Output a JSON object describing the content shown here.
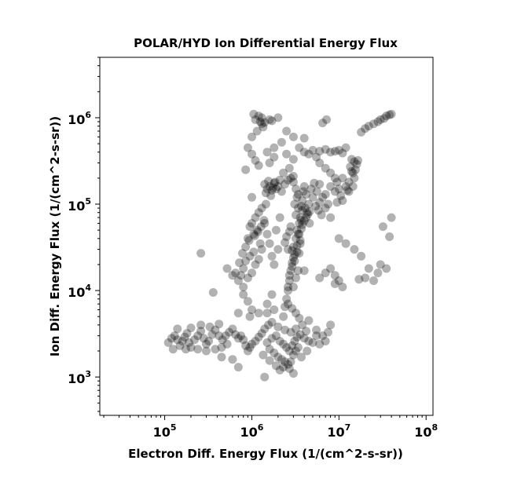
{
  "chart_data": {
    "type": "scatter",
    "title": "POLAR/HYD  Ion Differential Energy Flux",
    "xlabel": "Electron Diff. Energy Flux (1/(cm^2-s-sr))",
    "ylabel": "Ion Diff. Energy Flux (1/(cm^2-s-sr))",
    "x_scale": "log",
    "y_scale": "log",
    "xlim": [
      18000,
      120000000
    ],
    "ylim": [
      360,
      5000000
    ],
    "x_ticks": [
      {
        "base": "10",
        "exp": "5"
      },
      {
        "base": "10",
        "exp": "6"
      },
      {
        "base": "10",
        "exp": "7"
      },
      {
        "base": "10",
        "exp": "8"
      }
    ],
    "y_ticks": [
      {
        "base": "10",
        "exp": "3"
      },
      {
        "base": "10",
        "exp": "4"
      },
      {
        "base": "10",
        "exp": "5"
      },
      {
        "base": "10",
        "exp": "6"
      }
    ],
    "marker_color": "#000000",
    "marker_opacity": 0.3,
    "grid": false,
    "legend": "none",
    "points": [
      [
        1200000,
        1050000
      ],
      [
        1300000,
        1000000
      ],
      [
        1100000,
        950000
      ],
      [
        1250000,
        900000
      ],
      [
        1400000,
        880000
      ],
      [
        1350000,
        780000
      ],
      [
        1700000,
        920000
      ],
      [
        1000000,
        600000
      ],
      [
        1150000,
        700000
      ],
      [
        6500000,
        870000
      ],
      [
        7200000,
        950000
      ],
      [
        1050000,
        1100000
      ],
      [
        1600000,
        300000
      ],
      [
        2200000,
        520000
      ],
      [
        1800000,
        450000
      ],
      [
        1500000,
        400000
      ],
      [
        2500000,
        380000
      ],
      [
        4000000,
        400000
      ],
      [
        5000000,
        420000
      ],
      [
        6000000,
        410000
      ],
      [
        7000000,
        430000
      ],
      [
        8000000,
        400000
      ],
      [
        9000000,
        410000
      ],
      [
        10000000,
        420000
      ],
      [
        12000000,
        450000
      ],
      [
        11000000,
        390000
      ],
      [
        5500000,
        350000
      ],
      [
        3000000,
        330000
      ],
      [
        14000000,
        330000
      ],
      [
        15000000,
        310000
      ],
      [
        16000000,
        290000
      ],
      [
        15500000,
        250000
      ],
      [
        14500000,
        230000
      ],
      [
        15000000,
        200000
      ],
      [
        13000000,
        180000
      ],
      [
        12000000,
        160000
      ],
      [
        10000000,
        150000
      ],
      [
        9000000,
        140000
      ],
      [
        8000000,
        160000
      ],
      [
        7000000,
        130000
      ],
      [
        6000000,
        170000
      ],
      [
        13500000,
        270000
      ],
      [
        16500000,
        320000
      ],
      [
        14000000,
        240000
      ],
      [
        14500000,
        160000
      ],
      [
        13000000,
        140000
      ],
      [
        11000000,
        110000
      ],
      [
        9500000,
        105000
      ],
      [
        10500000,
        125000
      ],
      [
        12500000,
        145000
      ],
      [
        20000000,
        750000
      ],
      [
        25000000,
        850000
      ],
      [
        30000000,
        950000
      ],
      [
        35000000,
        1050000
      ],
      [
        40000000,
        1100000
      ],
      [
        18000000,
        680000
      ],
      [
        22000000,
        800000
      ],
      [
        28000000,
        900000
      ],
      [
        33000000,
        980000
      ],
      [
        38000000,
        1080000
      ],
      [
        1400000,
        170000
      ],
      [
        1500000,
        150000
      ],
      [
        1600000,
        160000
      ],
      [
        1700000,
        145000
      ],
      [
        1800000,
        175000
      ],
      [
        1900000,
        150000
      ],
      [
        2000000,
        160000
      ],
      [
        2200000,
        140000
      ],
      [
        1450000,
        135000
      ],
      [
        1650000,
        125000
      ],
      [
        1850000,
        180000
      ],
      [
        2100000,
        190000
      ],
      [
        2400000,
        170000
      ],
      [
        2600000,
        190000
      ],
      [
        2800000,
        200000
      ],
      [
        2300000,
        230000
      ],
      [
        2700000,
        260000
      ],
      [
        3000000,
        210000
      ],
      [
        1550000,
        185000
      ],
      [
        1750000,
        155000
      ],
      [
        3000000,
        180000
      ],
      [
        3200000,
        150000
      ],
      [
        3300000,
        120000
      ],
      [
        3100000,
        100000
      ],
      [
        3400000,
        90000
      ],
      [
        3200000,
        75000
      ],
      [
        3500000,
        60000
      ],
      [
        3300000,
        50000
      ],
      [
        3200000,
        40000
      ],
      [
        3000000,
        32000
      ],
      [
        3100000,
        26000
      ],
      [
        2900000,
        21000
      ],
      [
        2800000,
        17000
      ],
      [
        2700000,
        13000
      ],
      [
        2600000,
        10000
      ],
      [
        2500000,
        8000
      ],
      [
        2400000,
        6500
      ],
      [
        2300000,
        5000
      ],
      [
        3600000,
        70000
      ],
      [
        3800000,
        110000
      ],
      [
        3400000,
        130000
      ],
      [
        3700000,
        95000
      ],
      [
        3900000,
        140000
      ],
      [
        3500000,
        45000
      ],
      [
        3600000,
        35000
      ],
      [
        3300000,
        28000
      ],
      [
        3000000,
        24000
      ],
      [
        2900000,
        19000
      ],
      [
        2700000,
        15000
      ],
      [
        2600000,
        11000
      ],
      [
        4000000,
        160000
      ],
      [
        4200000,
        130000
      ],
      [
        4500000,
        100000
      ],
      [
        4800000,
        150000
      ],
      [
        5000000,
        120000
      ],
      [
        4300000,
        80000
      ],
      [
        4600000,
        60000
      ],
      [
        4100000,
        90000
      ],
      [
        3800000,
        85000
      ],
      [
        3700000,
        65000
      ],
      [
        5200000,
        175000
      ],
      [
        5600000,
        140000
      ],
      [
        6000000,
        105000
      ],
      [
        6500000,
        120000
      ],
      [
        7000000,
        90000
      ],
      [
        7500000,
        100000
      ],
      [
        8000000,
        70000
      ],
      [
        6300000,
        75000
      ],
      [
        5800000,
        85000
      ],
      [
        5400000,
        95000
      ],
      [
        1200000,
        80000
      ],
      [
        1100000,
        70000
      ],
      [
        1000000,
        60000
      ],
      [
        1150000,
        50000
      ],
      [
        1050000,
        45000
      ],
      [
        950000,
        55000
      ],
      [
        1250000,
        35000
      ],
      [
        1300000,
        30000
      ],
      [
        900000,
        40000
      ],
      [
        1400000,
        60000
      ],
      [
        1500000,
        45000
      ],
      [
        1600000,
        35000
      ],
      [
        1700000,
        25000
      ],
      [
        1800000,
        20000
      ],
      [
        2000000,
        30000
      ],
      [
        1900000,
        50000
      ],
      [
        2100000,
        70000
      ],
      [
        1300000,
        90000
      ],
      [
        1450000,
        100000
      ],
      [
        1000000,
        120000
      ],
      [
        950000,
        25000
      ],
      [
        850000,
        22000
      ],
      [
        800000,
        18000
      ],
      [
        750000,
        15000
      ],
      [
        700000,
        13000
      ],
      [
        800000,
        11000
      ],
      [
        900000,
        14000
      ],
      [
        1000000,
        16000
      ],
      [
        1100000,
        20000
      ],
      [
        1200000,
        23000
      ],
      [
        1050000,
        28000
      ],
      [
        650000,
        16000
      ],
      [
        720000,
        21000
      ],
      [
        780000,
        27000
      ],
      [
        850000,
        32000
      ],
      [
        930000,
        38000
      ],
      [
        1080000,
        43000
      ],
      [
        1180000,
        48000
      ],
      [
        1280000,
        55000
      ],
      [
        1380000,
        65000
      ],
      [
        10000000,
        40000
      ],
      [
        12000000,
        35000
      ],
      [
        15000000,
        30000
      ],
      [
        18000000,
        25000
      ],
      [
        22000000,
        18000
      ],
      [
        30000000,
        20000
      ],
      [
        35000000,
        18000
      ],
      [
        38000000,
        42000
      ],
      [
        40000000,
        70000
      ],
      [
        32000000,
        55000
      ],
      [
        25000000,
        13000
      ],
      [
        20000000,
        14000
      ],
      [
        28000000,
        16000
      ],
      [
        17000000,
        13500
      ],
      [
        8000000,
        18000
      ],
      [
        9000000,
        15000
      ],
      [
        10000000,
        13000
      ],
      [
        11000000,
        11000
      ],
      [
        7000000,
        16000
      ],
      [
        6000000,
        14000
      ],
      [
        1500000,
        2500
      ],
      [
        1700000,
        2800
      ],
      [
        1900000,
        3000
      ],
      [
        2100000,
        2600
      ],
      [
        2300000,
        2400
      ],
      [
        2500000,
        2200
      ],
      [
        2700000,
        2000
      ],
      [
        2900000,
        2300
      ],
      [
        3100000,
        2600
      ],
      [
        3300000,
        2900
      ],
      [
        1600000,
        2100
      ],
      [
        1800000,
        1900
      ],
      [
        2000000,
        1700
      ],
      [
        2200000,
        1600
      ],
      [
        2400000,
        1500
      ],
      [
        2600000,
        1400
      ],
      [
        2800000,
        1500
      ],
      [
        3000000,
        1800
      ],
      [
        3200000,
        2000
      ],
      [
        3400000,
        2200
      ],
      [
        1300000,
        3200
      ],
      [
        1200000,
        2900
      ],
      [
        1100000,
        2600
      ],
      [
        1000000,
        2400
      ],
      [
        950000,
        2200
      ],
      [
        900000,
        2000
      ],
      [
        850000,
        2300
      ],
      [
        800000,
        2700
      ],
      [
        750000,
        3000
      ],
      [
        700000,
        2800
      ],
      [
        1400000,
        3600
      ],
      [
        1550000,
        4000
      ],
      [
        1700000,
        4300
      ],
      [
        2000000,
        3800
      ],
      [
        2400000,
        3500
      ],
      [
        2800000,
        3300
      ],
      [
        3200000,
        3600
      ],
      [
        3600000,
        3100
      ],
      [
        4000000,
        2800
      ],
      [
        4500000,
        2600
      ],
      [
        5000000,
        2500
      ],
      [
        6000000,
        2400
      ],
      [
        7000000,
        2600
      ],
      [
        5500000,
        3000
      ],
      [
        4200000,
        3400
      ],
      [
        3800000,
        4000
      ],
      [
        3500000,
        4800
      ],
      [
        3200000,
        5500
      ],
      [
        2900000,
        6200
      ],
      [
        2600000,
        7000
      ],
      [
        3000000,
        1100
      ],
      [
        1400000,
        1000
      ],
      [
        2300000,
        1300
      ],
      [
        2100000,
        1200
      ],
      [
        1900000,
        1350
      ],
      [
        1600000,
        1550
      ],
      [
        1350000,
        1800
      ],
      [
        2700000,
        1250
      ],
      [
        3700000,
        1700
      ],
      [
        4300000,
        2000
      ],
      [
        110000,
        2500
      ],
      [
        120000,
        2800
      ],
      [
        130000,
        3000
      ],
      [
        140000,
        2700
      ],
      [
        150000,
        2300
      ],
      [
        160000,
        2600
      ],
      [
        170000,
        2900
      ],
      [
        180000,
        3200
      ],
      [
        190000,
        2500
      ],
      [
        200000,
        2200
      ],
      [
        220000,
        2700
      ],
      [
        240000,
        3000
      ],
      [
        260000,
        3400
      ],
      [
        280000,
        2800
      ],
      [
        300000,
        2400
      ],
      [
        320000,
        2600
      ],
      [
        350000,
        3100
      ],
      [
        380000,
        3500
      ],
      [
        420000,
        3000
      ],
      [
        460000,
        2700
      ],
      [
        500000,
        3000
      ],
      [
        550000,
        3300
      ],
      [
        600000,
        3600
      ],
      [
        650000,
        3100
      ],
      [
        125000,
        2100
      ],
      [
        175000,
        2100
      ],
      [
        240000,
        2100
      ],
      [
        300000,
        2000
      ],
      [
        380000,
        2100
      ],
      [
        450000,
        2200
      ],
      [
        520000,
        2400
      ],
      [
        140000,
        3600
      ],
      [
        200000,
        3700
      ],
      [
        260000,
        4000
      ],
      [
        330000,
        3800
      ],
      [
        420000,
        4100
      ],
      [
        450000,
        1700
      ],
      [
        600000,
        1600
      ],
      [
        700000,
        1300
      ],
      [
        360000,
        9500
      ],
      [
        520000,
        18000
      ],
      [
        600000,
        15000
      ],
      [
        800000,
        9000
      ],
      [
        900000,
        7500
      ],
      [
        1000000,
        6000
      ],
      [
        1200000,
        5500
      ],
      [
        1500000,
        7000
      ],
      [
        1700000,
        9000
      ],
      [
        260000,
        27000
      ],
      [
        1500000,
        5500
      ],
      [
        1800000,
        6000
      ],
      [
        950000,
        5000
      ],
      [
        700000,
        5500
      ],
      [
        4500000,
        4500
      ],
      [
        5500000,
        3500
      ],
      [
        6500000,
        3000
      ],
      [
        7500000,
        3300
      ],
      [
        8000000,
        4000
      ],
      [
        9000000,
        12000
      ],
      [
        4000000,
        17000
      ],
      [
        2000000,
        1000000
      ],
      [
        1600000,
        950000
      ],
      [
        1300000,
        850000
      ],
      [
        3000000,
        600000
      ],
      [
        4000000,
        580000
      ],
      [
        2500000,
        700000
      ],
      [
        900000,
        450000
      ],
      [
        1000000,
        380000
      ],
      [
        1100000,
        320000
      ],
      [
        1200000,
        280000
      ],
      [
        850000,
        250000
      ],
      [
        1800000,
        350000
      ],
      [
        3500000,
        450000
      ],
      [
        4500000,
        380000
      ],
      [
        6000000,
        300000
      ],
      [
        7000000,
        260000
      ],
      [
        8000000,
        230000
      ],
      [
        9000000,
        200000
      ],
      [
        9500000,
        180000
      ],
      [
        11000000,
        200000
      ],
      [
        3000000,
        11000
      ],
      [
        3200000,
        14000
      ],
      [
        3400000,
        17000
      ],
      [
        3100000,
        22000
      ],
      [
        3500000,
        27000
      ],
      [
        3300000,
        33000
      ],
      [
        3600000,
        38000
      ],
      [
        3400000,
        45000
      ],
      [
        2800000,
        55000
      ],
      [
        2700000,
        48000
      ],
      [
        2500000,
        42000
      ],
      [
        2400000,
        36000
      ],
      [
        2600000,
        30000
      ],
      [
        2900000,
        29000
      ],
      [
        3700000,
        52000
      ],
      [
        3800000,
        58000
      ],
      [
        4000000,
        64000
      ],
      [
        4200000,
        70000
      ],
      [
        4400000,
        76000
      ],
      [
        4600000,
        82000
      ]
    ]
  }
}
